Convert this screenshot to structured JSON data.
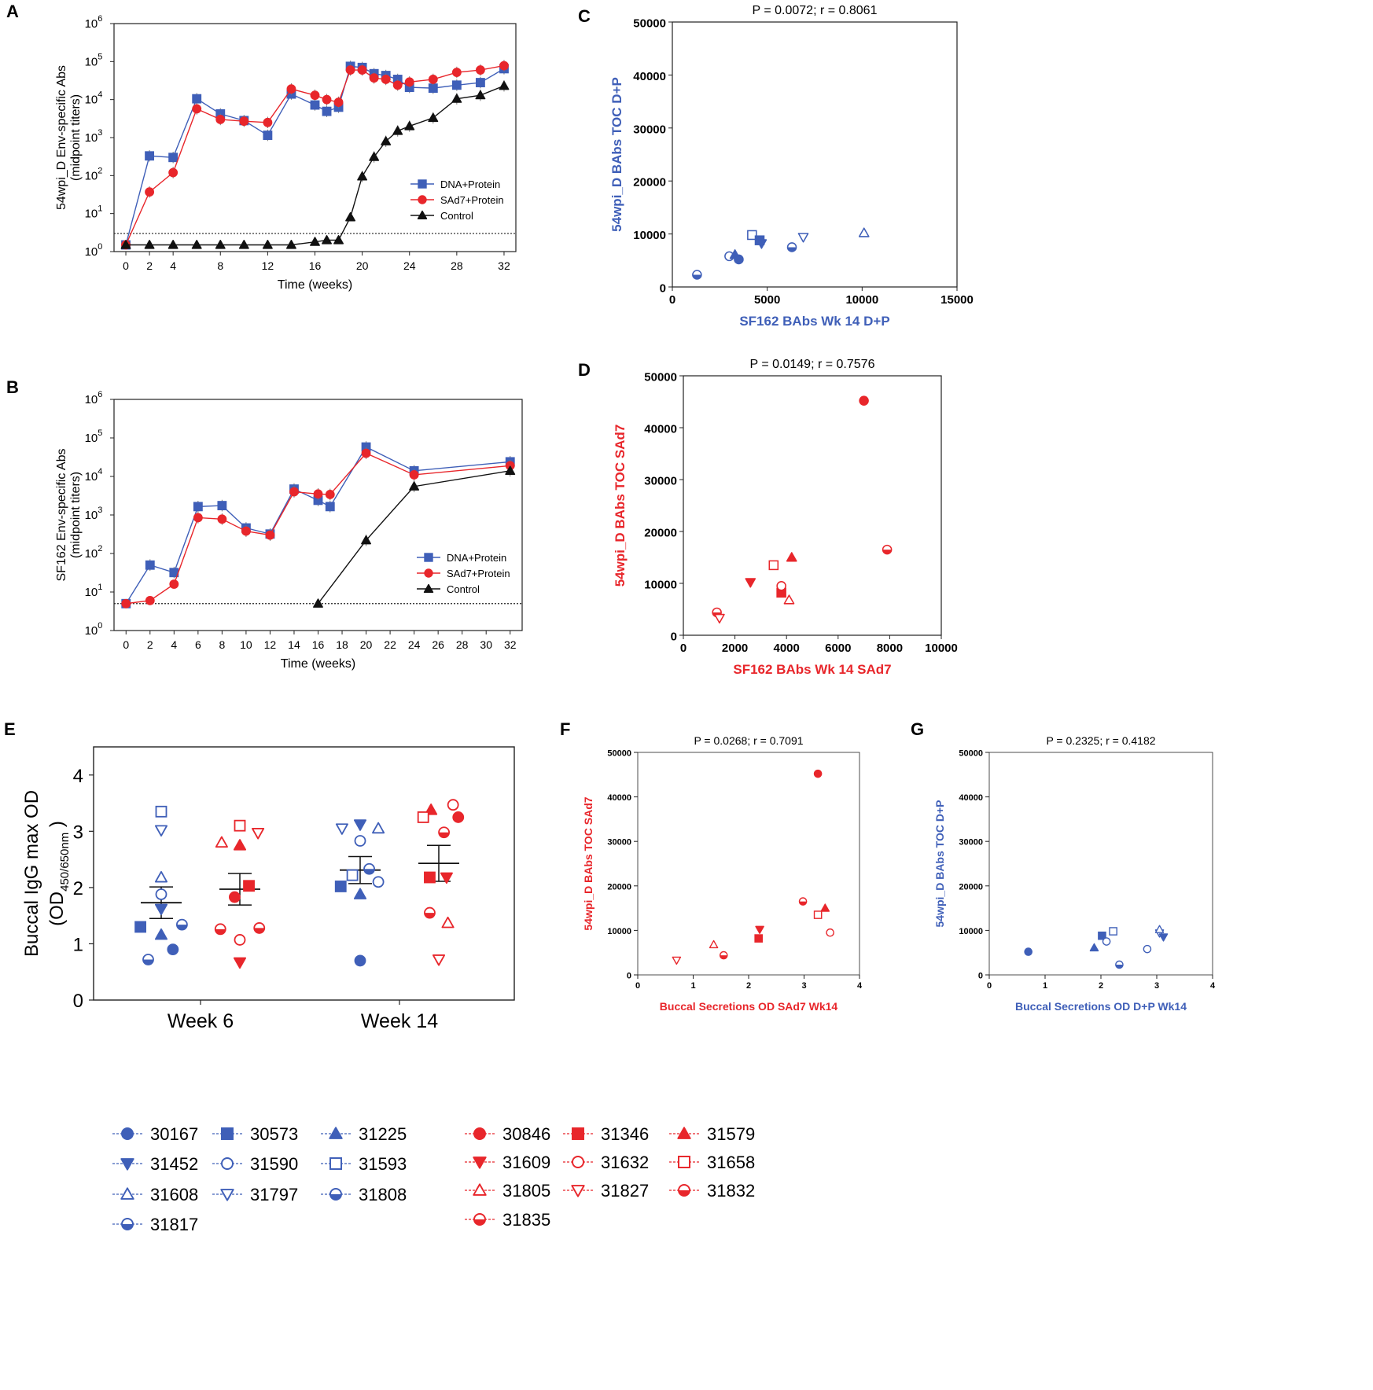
{
  "colors": {
    "blue": "#3f5fb8",
    "red": "#e8262b",
    "black": "#111111"
  },
  "chart_data": [
    {
      "id": "A",
      "panel_label": "A",
      "type": "line",
      "scale": "log",
      "xlabel": "Time (weeks)",
      "ylabel": "54wpi_D Env-specific Abs",
      "ylabel2": "(midpoint titers)",
      "xlim": [
        -1,
        33
      ],
      "xticks": [
        "0",
        "2",
        "4",
        "8",
        "12",
        "16",
        "20",
        "24",
        "28",
        "32"
      ],
      "ylim_exp": [
        0,
        6
      ],
      "yticks": [
        {
          "b": "10",
          "e": "0"
        },
        {
          "b": "10",
          "e": "1"
        },
        {
          "b": "10",
          "e": "2"
        },
        {
          "b": "10",
          "e": "3"
        },
        {
          "b": "10",
          "e": "4"
        },
        {
          "b": "10",
          "e": "5"
        },
        {
          "b": "10",
          "e": "6"
        }
      ],
      "threshold": 3,
      "series": [
        {
          "name": "DNA+Protein",
          "color": "blue",
          "marker": "square",
          "x": [
            0,
            2,
            4,
            6,
            8,
            10,
            12,
            14,
            16,
            17,
            18,
            19,
            20,
            21,
            22,
            23,
            24,
            26,
            28,
            30,
            32
          ],
          "y": [
            1.5,
            330,
            300,
            10500,
            4200,
            2800,
            1150,
            14000,
            7200,
            4900,
            6300,
            75000,
            70000,
            48000,
            43000,
            34000,
            21000,
            20000,
            24000,
            28000,
            65000
          ]
        },
        {
          "name": "SAd7+Protein",
          "color": "red",
          "marker": "circle",
          "x": [
            0,
            2,
            4,
            6,
            8,
            10,
            12,
            14,
            16,
            17,
            18,
            19,
            20,
            21,
            22,
            23,
            24,
            26,
            28,
            30,
            32
          ],
          "y": [
            1.5,
            37,
            120,
            5700,
            3000,
            2700,
            2500,
            19000,
            13000,
            10000,
            8500,
            60000,
            60000,
            37000,
            34000,
            24000,
            29000,
            34000,
            52000,
            60000,
            78000
          ]
        },
        {
          "name": "Control",
          "color": "black",
          "marker": "triangle",
          "x": [
            0,
            2,
            4,
            6,
            8,
            10,
            12,
            14,
            16,
            17,
            18,
            19,
            20,
            21,
            22,
            23,
            24,
            26,
            28,
            30,
            32
          ],
          "y": [
            1.5,
            1.5,
            1.5,
            1.5,
            1.5,
            1.5,
            1.5,
            1.5,
            1.8,
            2,
            2,
            8,
            95,
            310,
            800,
            1500,
            2000,
            3300,
            10500,
            13000,
            23000
          ]
        }
      ]
    },
    {
      "id": "B",
      "panel_label": "B",
      "type": "line",
      "scale": "log",
      "xlabel": "Time (weeks)",
      "ylabel": "SF162 Env-specific Abs",
      "ylabel2": "(midpoint titers)",
      "xlim": [
        -1,
        33
      ],
      "xticks": [
        "0",
        "2",
        "4",
        "6",
        "8",
        "10",
        "12",
        "14",
        "16",
        "18",
        "20",
        "22",
        "24",
        "26",
        "28",
        "30",
        "32"
      ],
      "ylim_exp": [
        0,
        6
      ],
      "yticks": [
        {
          "b": "10",
          "e": "0"
        },
        {
          "b": "10",
          "e": "1"
        },
        {
          "b": "10",
          "e": "2"
        },
        {
          "b": "10",
          "e": "3"
        },
        {
          "b": "10",
          "e": "4"
        },
        {
          "b": "10",
          "e": "5"
        },
        {
          "b": "10",
          "e": "6"
        }
      ],
      "threshold": 5,
      "series": [
        {
          "name": "DNA+Protein",
          "color": "blue",
          "marker": "square",
          "x": [
            0,
            2,
            4,
            6,
            8,
            10,
            12,
            14,
            16,
            17,
            20,
            24,
            32
          ],
          "y": [
            5,
            50,
            32,
            1650,
            1750,
            460,
            320,
            4700,
            2400,
            1650,
            58000,
            14000,
            24000
          ]
        },
        {
          "name": "SAd7+Protein",
          "color": "red",
          "marker": "circle",
          "x": [
            0,
            2,
            4,
            6,
            8,
            10,
            12,
            14,
            16,
            17,
            20,
            24,
            32
          ],
          "y": [
            5,
            6,
            16,
            850,
            780,
            380,
            300,
            4000,
            3500,
            3400,
            40000,
            11000,
            19000
          ]
        },
        {
          "name": "Control",
          "color": "black",
          "marker": "triangle",
          "x": [
            16,
            20,
            24,
            32
          ],
          "y": [
            5,
            220,
            5500,
            14000
          ]
        }
      ]
    },
    {
      "id": "C",
      "panel_label": "C",
      "type": "scatter",
      "title": "P = 0.0072; r = 0.8061",
      "xlabel": "SF162 BAbs Wk 14 D+P",
      "ylabel": "54wpi_D BAbs TOC D+P",
      "color": "blue",
      "xlim": [
        0,
        15000
      ],
      "ylim": [
        0,
        50000
      ],
      "xticks": [
        "0",
        "5000",
        "10000",
        "15000"
      ],
      "yticks": [
        "0",
        "10000",
        "20000",
        "30000",
        "40000",
        "50000"
      ],
      "points": [
        {
          "x": 1300,
          "y": 2300,
          "m": "half"
        },
        {
          "x": 3000,
          "y": 5800,
          "m": "circle-open"
        },
        {
          "x": 3300,
          "y": 6100,
          "m": "triangle"
        },
        {
          "x": 3500,
          "y": 5200,
          "m": "circle"
        },
        {
          "x": 4200,
          "y": 9800,
          "m": "square-open"
        },
        {
          "x": 4600,
          "y": 8800,
          "m": "square"
        },
        {
          "x": 4700,
          "y": 8200,
          "m": "triangle-down"
        },
        {
          "x": 6300,
          "y": 7500,
          "m": "half"
        },
        {
          "x": 6900,
          "y": 9400,
          "m": "triangle-down-open"
        },
        {
          "x": 10100,
          "y": 10200,
          "m": "triangle-open"
        }
      ]
    },
    {
      "id": "D",
      "panel_label": "D",
      "type": "scatter",
      "title": "P = 0.0149; r = 0.7576",
      "xlabel": "SF162 BAbs Wk 14 SAd7",
      "ylabel": "54wpi_D BAbs TOC SAd7",
      "color": "red",
      "xlim": [
        0,
        10000
      ],
      "ylim": [
        0,
        50000
      ],
      "xticks": [
        "0",
        "2000",
        "4000",
        "6000",
        "8000",
        "10000"
      ],
      "yticks": [
        "0",
        "10000",
        "20000",
        "30000",
        "40000",
        "50000"
      ],
      "points": [
        {
          "x": 1300,
          "y": 4400,
          "m": "half"
        },
        {
          "x": 1400,
          "y": 3300,
          "m": "triangle-down-open"
        },
        {
          "x": 2600,
          "y": 10200,
          "m": "triangle-down"
        },
        {
          "x": 3500,
          "y": 13500,
          "m": "square-open"
        },
        {
          "x": 3800,
          "y": 8200,
          "m": "square"
        },
        {
          "x": 3800,
          "y": 9500,
          "m": "circle-open"
        },
        {
          "x": 4100,
          "y": 6800,
          "m": "triangle-open"
        },
        {
          "x": 4200,
          "y": 15000,
          "m": "triangle"
        },
        {
          "x": 7000,
          "y": 45200,
          "m": "circle"
        },
        {
          "x": 7900,
          "y": 16500,
          "m": "half"
        }
      ]
    },
    {
      "id": "E",
      "panel_label": "E",
      "type": "scatter",
      "ylabel": "Buccal IgG max OD",
      "ylabel2_main": "(OD",
      "ylabel2_sub": "450/650nm",
      "ylabel2_end": ")",
      "categories": [
        "Week 6",
        "Week 14"
      ],
      "ylim": [
        0,
        4.5
      ],
      "yticks": [
        "0",
        "1",
        "2",
        "3",
        "4"
      ],
      "groups": [
        {
          "cat": 0,
          "color": "blue",
          "mean": 1.73,
          "sem": 0.28,
          "points": [
            {
              "o": 0,
              "y": 3.35,
              "m": "square-open"
            },
            {
              "o": 0,
              "y": 3.02,
              "m": "triangle-down-open"
            },
            {
              "o": 0,
              "y": 2.18,
              "m": "triangle-open"
            },
            {
              "o": 0,
              "y": 1.88,
              "m": "circle-open"
            },
            {
              "o": 0,
              "y": 1.62,
              "m": "triangle-down"
            },
            {
              "o": -0.8,
              "y": 1.3,
              "m": "square"
            },
            {
              "o": 0,
              "y": 1.16,
              "m": "triangle"
            },
            {
              "o": 0.8,
              "y": 1.34,
              "m": "half"
            },
            {
              "o": -0.5,
              "y": 0.72,
              "m": "half"
            },
            {
              "o": 0.45,
              "y": 0.9,
              "m": "circle"
            }
          ]
        },
        {
          "cat": 0,
          "color": "red",
          "mean": 1.97,
          "sem": 0.28,
          "points": [
            {
              "o": 0,
              "y": 3.1,
              "m": "square-open"
            },
            {
              "o": -0.7,
              "y": 2.8,
              "m": "triangle-open"
            },
            {
              "o": 0,
              "y": 2.75,
              "m": "triangle"
            },
            {
              "o": 0.7,
              "y": 2.97,
              "m": "triangle-down-open"
            },
            {
              "o": 0.35,
              "y": 2.03,
              "m": "square"
            },
            {
              "o": -0.2,
              "y": 1.83,
              "m": "circle"
            },
            {
              "o": -0.75,
              "y": 1.26,
              "m": "half"
            },
            {
              "o": 0.75,
              "y": 1.28,
              "m": "half"
            },
            {
              "o": 0,
              "y": 1.07,
              "m": "circle-open"
            },
            {
              "o": 0,
              "y": 0.67,
              "m": "triangle-down"
            }
          ]
        },
        {
          "cat": 1,
          "color": "blue",
          "mean": 2.31,
          "sem": 0.24,
          "points": [
            {
              "o": -0.7,
              "y": 3.05,
              "m": "triangle-down-open"
            },
            {
              "o": 0,
              "y": 3.12,
              "m": "triangle-down"
            },
            {
              "o": 0.7,
              "y": 3.05,
              "m": "triangle-open"
            },
            {
              "o": 0,
              "y": 2.83,
              "m": "circle-open"
            },
            {
              "o": 0.35,
              "y": 2.33,
              "m": "half"
            },
            {
              "o": -0.3,
              "y": 2.22,
              "m": "square-open"
            },
            {
              "o": 0.7,
              "y": 2.1,
              "m": "circle-open"
            },
            {
              "o": -0.75,
              "y": 2.02,
              "m": "square"
            },
            {
              "o": 0,
              "y": 1.88,
              "m": "triangle"
            },
            {
              "o": 0,
              "y": 0.7,
              "m": "circle"
            }
          ]
        },
        {
          "cat": 1,
          "color": "red",
          "mean": 2.43,
          "sem": 0.32,
          "points": [
            {
              "o": 0.55,
              "y": 3.47,
              "m": "circle-open"
            },
            {
              "o": -0.3,
              "y": 3.38,
              "m": "triangle"
            },
            {
              "o": -0.6,
              "y": 3.25,
              "m": "square-open"
            },
            {
              "o": 0.75,
              "y": 3.25,
              "m": "circle"
            },
            {
              "o": 0.2,
              "y": 2.98,
              "m": "half"
            },
            {
              "o": -0.35,
              "y": 2.18,
              "m": "square"
            },
            {
              "o": 0.3,
              "y": 2.18,
              "m": "triangle-down"
            },
            {
              "o": -0.35,
              "y": 1.55,
              "m": "half"
            },
            {
              "o": 0.35,
              "y": 1.37,
              "m": "triangle-open"
            },
            {
              "o": 0,
              "y": 0.72,
              "m": "triangle-down-open"
            }
          ]
        }
      ]
    },
    {
      "id": "F",
      "panel_label": "F",
      "type": "scatter",
      "title": "P = 0.0268; r = 0.7091",
      "xlabel": "Buccal Secretions OD SAd7 Wk14",
      "ylabel": "54wpi_D BAbs TOC SAd7",
      "color": "red",
      "xlim": [
        0,
        4
      ],
      "ylim": [
        0,
        50000
      ],
      "xticks": [
        "0",
        "1",
        "2",
        "3",
        "4"
      ],
      "yticks": [
        "0",
        "10000",
        "20000",
        "30000",
        "40000",
        "50000"
      ],
      "points": [
        {
          "x": 0.7,
          "y": 3300,
          "m": "triangle-down-open"
        },
        {
          "x": 1.37,
          "y": 6800,
          "m": "triangle-open"
        },
        {
          "x": 1.55,
          "y": 4400,
          "m": "half"
        },
        {
          "x": 2.18,
          "y": 8200,
          "m": "square"
        },
        {
          "x": 2.2,
          "y": 10200,
          "m": "triangle-down"
        },
        {
          "x": 2.98,
          "y": 16500,
          "m": "half"
        },
        {
          "x": 3.25,
          "y": 13500,
          "m": "square-open"
        },
        {
          "x": 3.25,
          "y": 45200,
          "m": "circle"
        },
        {
          "x": 3.38,
          "y": 15000,
          "m": "triangle"
        },
        {
          "x": 3.47,
          "y": 9500,
          "m": "circle-open"
        }
      ]
    },
    {
      "id": "G",
      "panel_label": "G",
      "type": "scatter",
      "title": "P = 0.2325; r = 0.4182",
      "xlabel": "Buccal Secretions OD D+P Wk14",
      "ylabel": "54wpi_D BAbs TOC D+P",
      "color": "blue",
      "xlim": [
        0,
        4
      ],
      "ylim": [
        0,
        50000
      ],
      "xticks": [
        "0",
        "1",
        "2",
        "3",
        "4"
      ],
      "yticks": [
        "0",
        "10000",
        "20000",
        "30000",
        "40000",
        "50000"
      ],
      "points": [
        {
          "x": 0.7,
          "y": 5200,
          "m": "circle"
        },
        {
          "x": 1.88,
          "y": 6100,
          "m": "triangle"
        },
        {
          "x": 2.02,
          "y": 8800,
          "m": "square"
        },
        {
          "x": 2.1,
          "y": 7500,
          "m": "circle-open"
        },
        {
          "x": 2.22,
          "y": 9800,
          "m": "square-open"
        },
        {
          "x": 2.33,
          "y": 2300,
          "m": "half"
        },
        {
          "x": 2.83,
          "y": 5800,
          "m": "circle-open"
        },
        {
          "x": 3.05,
          "y": 9400,
          "m": "triangle-down-open"
        },
        {
          "x": 3.05,
          "y": 10200,
          "m": "triangle-open"
        },
        {
          "x": 3.12,
          "y": 8500,
          "m": "triangle-down"
        }
      ]
    }
  ],
  "legend": {
    "blue": [
      {
        "id": "30167",
        "m": "circle"
      },
      {
        "id": "30573",
        "m": "square"
      },
      {
        "id": "31225",
        "m": "triangle"
      },
      {
        "id": "31452",
        "m": "triangle-down"
      },
      {
        "id": "31590",
        "m": "circle-open"
      },
      {
        "id": "31593",
        "m": "square-open"
      },
      {
        "id": "31608",
        "m": "triangle-open"
      },
      {
        "id": "31797",
        "m": "triangle-down-open"
      },
      {
        "id": "31808",
        "m": "half"
      },
      {
        "id": "31817",
        "m": "half"
      }
    ],
    "red": [
      {
        "id": "30846",
        "m": "circle"
      },
      {
        "id": "31346",
        "m": "square"
      },
      {
        "id": "31579",
        "m": "triangle"
      },
      {
        "id": "31609",
        "m": "triangle-down"
      },
      {
        "id": "31632",
        "m": "circle-open"
      },
      {
        "id": "31658",
        "m": "square-open"
      },
      {
        "id": "31805",
        "m": "triangle-open"
      },
      {
        "id": "31827",
        "m": "triangle-down-open"
      },
      {
        "id": "31832",
        "m": "half"
      },
      {
        "id": "31835",
        "m": "half"
      }
    ]
  }
}
